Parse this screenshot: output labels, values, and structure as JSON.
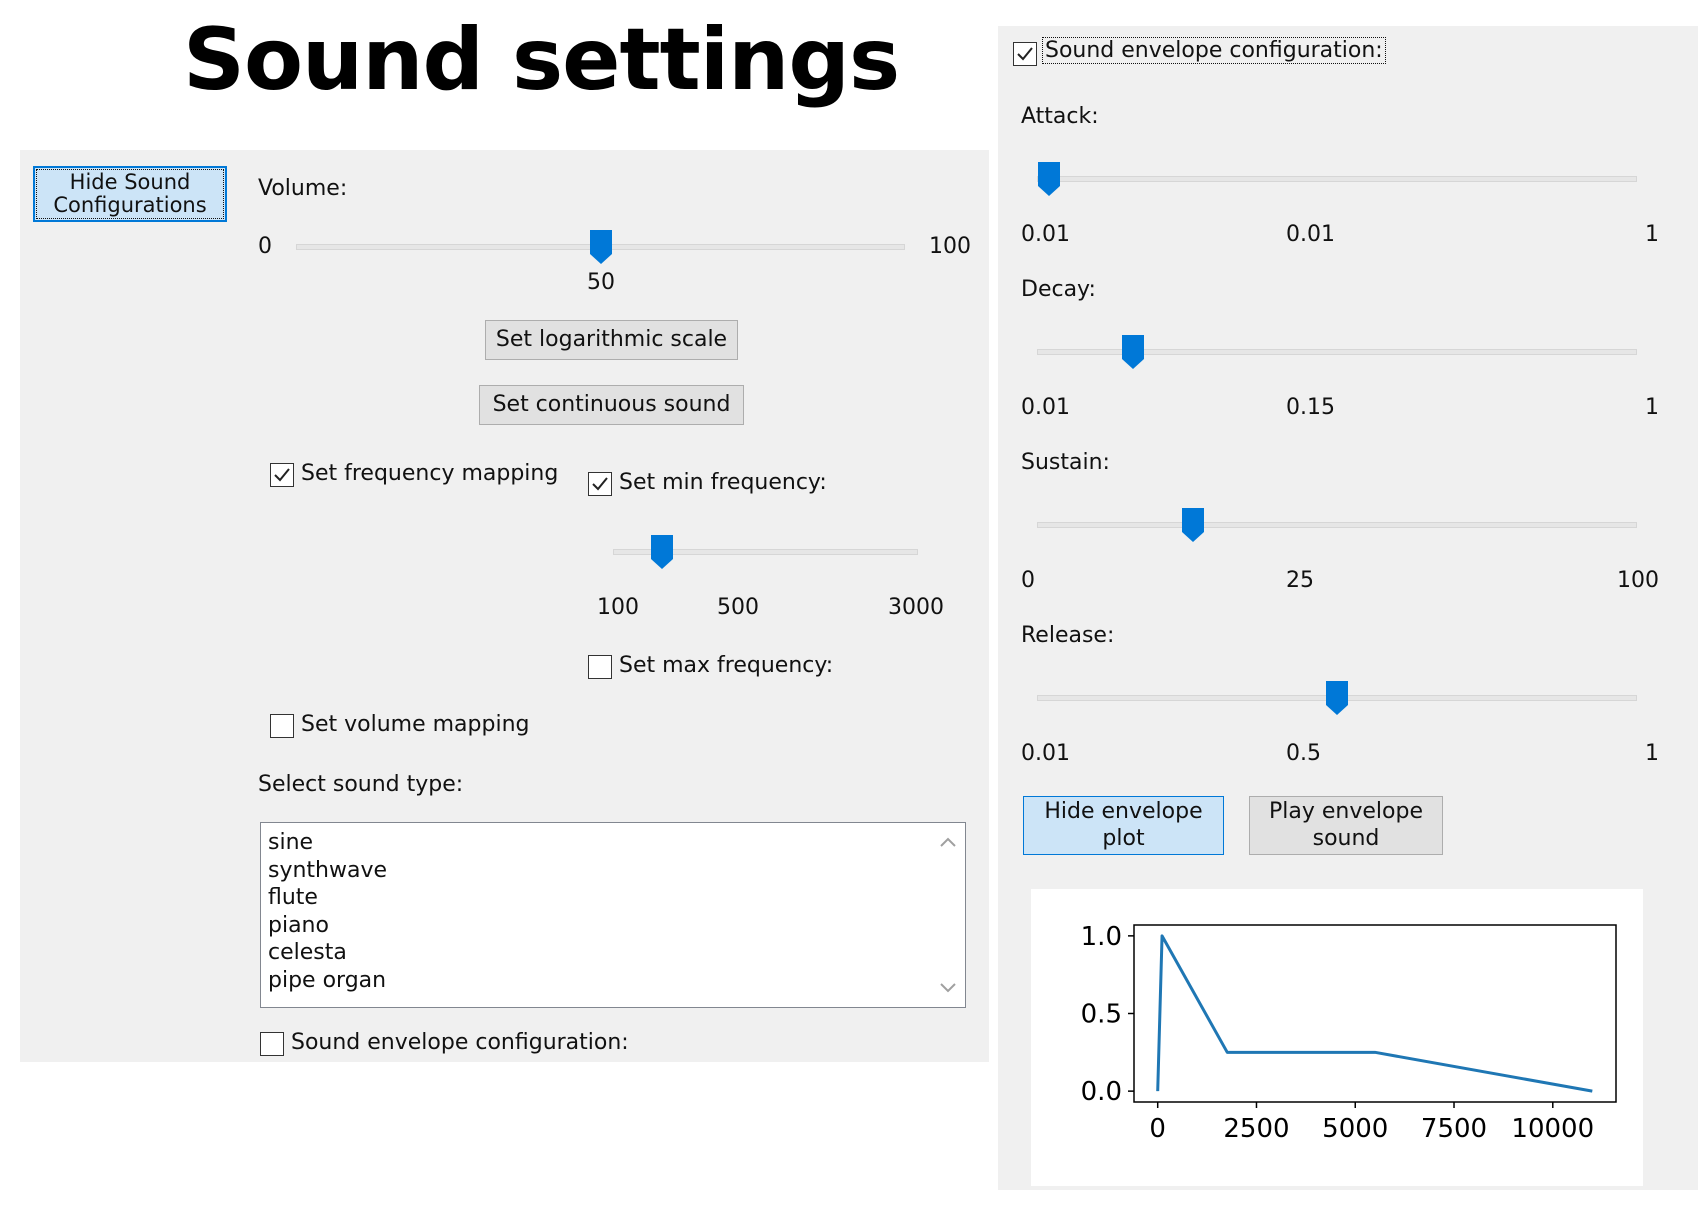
{
  "title": "Sound settings",
  "left_panel": {
    "hide_button_label": "Hide Sound Configurations",
    "volume": {
      "label": "Volume:",
      "min": "0",
      "max": "100",
      "value": "50",
      "fraction": 0.5
    },
    "log_scale_button": "Set logarithmic scale",
    "continuous_button": "Set continuous sound",
    "frequency_mapping": {
      "label": "Set frequency mapping",
      "checked": true
    },
    "min_frequency": {
      "label": "Set min frequency:",
      "checked": true,
      "scale_min": "100",
      "value": "500",
      "scale_max": "3000",
      "fraction": 0.16
    },
    "max_frequency": {
      "label": "Set max frequency:",
      "checked": false
    },
    "volume_mapping": {
      "label": "Set volume mapping",
      "checked": false
    },
    "sound_type": {
      "label": "Select sound type:",
      "options": [
        "sine",
        "synthwave",
        "flute",
        "piano",
        "celesta",
        "pipe organ"
      ]
    },
    "envelope_checkbox": {
      "label": "Sound envelope configuration:",
      "checked": false
    }
  },
  "right_panel": {
    "envelope_checkbox": {
      "label": "Sound envelope configuration:",
      "checked": true
    },
    "sliders": [
      {
        "label": "Attack:",
        "min": "0.01",
        "value": "0.01",
        "max": "1",
        "fraction": 0.02
      },
      {
        "label": "Decay:",
        "min": "0.01",
        "value": "0.15",
        "max": "1",
        "fraction": 0.16
      },
      {
        "label": "Sustain:",
        "min": "0",
        "value": "25",
        "max": "100",
        "fraction": 0.26
      },
      {
        "label": "Release:",
        "min": "0.01",
        "value": "0.5",
        "max": "1",
        "fraction": 0.5
      }
    ],
    "hide_plot_button": "Hide envelope plot",
    "play_button": "Play envelope sound"
  },
  "chart_data": {
    "type": "line",
    "series": [
      {
        "x": [
          0,
          110,
          1760,
          5500,
          11000
        ],
        "y": [
          0,
          1.0,
          0.25,
          0.25,
          0.0
        ]
      }
    ],
    "x_ticks": [
      "0",
      "2500",
      "5000",
      "7500",
      "10000"
    ],
    "y_ticks": [
      "0.0",
      "0.5",
      "1.0"
    ],
    "xlim": [
      -600,
      11600
    ],
    "ylim": [
      -0.07,
      1.07
    ],
    "line_color": "#1f77b4"
  },
  "colors": {
    "accent": "#0078d7",
    "panel": "#f0f0f0"
  }
}
